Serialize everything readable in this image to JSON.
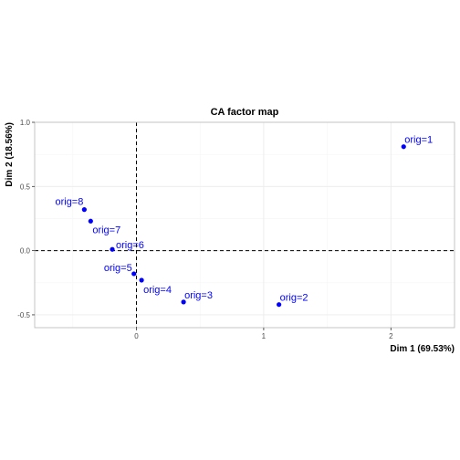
{
  "chart_data": {
    "type": "scatter",
    "title": "CA factor map",
    "xlabel": "Dim 1 (69.53%)",
    "ylabel": "Dim 2 (18.56%)",
    "xlim": [
      -0.8,
      2.5
    ],
    "ylim": [
      -0.6,
      1.0
    ],
    "xticks": [
      0,
      1,
      2
    ],
    "yticks": [
      1.0,
      0.5,
      0.0,
      -0.5
    ],
    "xtick_labels": [
      "0",
      "1",
      "2"
    ],
    "ytick_labels": [
      "1.0",
      "0.5",
      "0.0",
      "-0.5"
    ],
    "reference_lines": {
      "x": 0,
      "y": 0,
      "style": "dashed"
    },
    "grid": true,
    "point_color": "#0000ff",
    "points": [
      {
        "label": "orig=1",
        "x": 2.1,
        "y": 0.81
      },
      {
        "label": "orig=2",
        "x": 1.12,
        "y": -0.42
      },
      {
        "label": "orig=3",
        "x": 0.37,
        "y": -0.4
      },
      {
        "label": "orig=4",
        "x": 0.04,
        "y": -0.23
      },
      {
        "label": "orig=5",
        "x": -0.02,
        "y": -0.18
      },
      {
        "label": "orig=6",
        "x": -0.19,
        "y": 0.01
      },
      {
        "label": "orig=7",
        "x": -0.36,
        "y": 0.23
      },
      {
        "label": "orig=8",
        "x": -0.41,
        "y": 0.32
      }
    ]
  }
}
